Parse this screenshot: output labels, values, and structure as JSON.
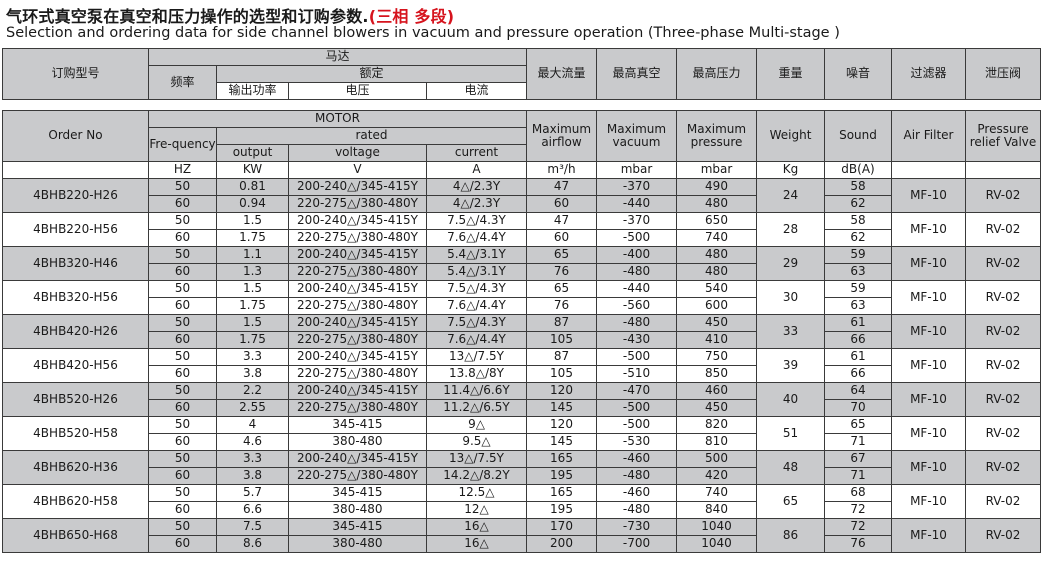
{
  "title": {
    "cn_main": "气环式真空泵在真空和压力操作的选型和订购参数.",
    "cn_highlight": "(三相 多段)",
    "en": "Selection and ordering data for side channel blowers in vacuum and pressure operation (Three-phase Multi-stage )"
  },
  "header_cn": {
    "order": "订购型号",
    "motor": "马达",
    "freq": "频率",
    "rated": "额定",
    "output": "输出功率",
    "voltage": "电压",
    "current": "电流",
    "airflow": "最大流量",
    "vacuum": "最高真空",
    "pressure": "最高压力",
    "weight": "重量",
    "sound": "噪音",
    "filter": "过滤器",
    "valve": "泄压阀"
  },
  "header_en": {
    "order": "Order No",
    "motor": "MOTOR",
    "freq": "Fre-quency",
    "rated": "rated",
    "output": "output",
    "voltage": "voltage",
    "current": "current",
    "airflow": "Maximum airflow",
    "vacuum": "Maximum vacuum",
    "pressure": "Maximum pressure",
    "weight": "Weight",
    "sound": "Sound",
    "filter": "Air Filter",
    "valve": "Pressure relief Valve"
  },
  "units": {
    "freq": "HZ",
    "output": "KW",
    "voltage": "V",
    "current": "A",
    "airflow": "m³/h",
    "vacuum": "mbar",
    "pressure": "mbar",
    "weight": "Kg",
    "sound": "dB(A)"
  },
  "rows": [
    {
      "model": "4BHB220-H26",
      "weight": "24",
      "filter": "MF-10",
      "valve": "RV-02",
      "sub": [
        {
          "freq": "50",
          "output": "0.81",
          "voltage": "200-240△/345-415Y",
          "current": "4△/2.3Y",
          "airflow": "47",
          "vacuum": "-370",
          "pressure": "490",
          "sound": "58"
        },
        {
          "freq": "60",
          "output": "0.94",
          "voltage": "220-275△/380-480Y",
          "current": "4△/2.3Y",
          "airflow": "60",
          "vacuum": "-440",
          "pressure": "480",
          "sound": "62"
        }
      ]
    },
    {
      "model": "4BHB220-H56",
      "weight": "28",
      "filter": "MF-10",
      "valve": "RV-02",
      "sub": [
        {
          "freq": "50",
          "output": "1.5",
          "voltage": "200-240△/345-415Y",
          "current": "7.5△/4.3Y",
          "airflow": "47",
          "vacuum": "-370",
          "pressure": "650",
          "sound": "58"
        },
        {
          "freq": "60",
          "output": "1.75",
          "voltage": "220-275△/380-480Y",
          "current": "7.6△/4.4Y",
          "airflow": "60",
          "vacuum": "-500",
          "pressure": "740",
          "sound": "62"
        }
      ]
    },
    {
      "model": "4BHB320-H46",
      "weight": "29",
      "filter": "MF-10",
      "valve": "RV-02",
      "sub": [
        {
          "freq": "50",
          "output": "1.1",
          "voltage": "200-240△/345-415Y",
          "current": "5.4△/3.1Y",
          "airflow": "65",
          "vacuum": "-400",
          "pressure": "480",
          "sound": "59"
        },
        {
          "freq": "60",
          "output": "1.3",
          "voltage": "220-275△/380-480Y",
          "current": "5.4△/3.1Y",
          "airflow": "76",
          "vacuum": "-480",
          "pressure": "480",
          "sound": "63"
        }
      ]
    },
    {
      "model": "4BHB320-H56",
      "weight": "30",
      "filter": "MF-10",
      "valve": "RV-02",
      "sub": [
        {
          "freq": "50",
          "output": "1.5",
          "voltage": "200-240△/345-415Y",
          "current": "7.5△/4.3Y",
          "airflow": "65",
          "vacuum": "-440",
          "pressure": "540",
          "sound": "59"
        },
        {
          "freq": "60",
          "output": "1.75",
          "voltage": "220-275△/380-480Y",
          "current": "7.6△/4.4Y",
          "airflow": "76",
          "vacuum": "-560",
          "pressure": "600",
          "sound": "63"
        }
      ]
    },
    {
      "model": "4BHB420-H26",
      "weight": "33",
      "filter": "MF-10",
      "valve": "RV-02",
      "sub": [
        {
          "freq": "50",
          "output": "1.5",
          "voltage": "200-240△/345-415Y",
          "current": "7.5△/4.3Y",
          "airflow": "87",
          "vacuum": "-480",
          "pressure": "450",
          "sound": "61"
        },
        {
          "freq": "60",
          "output": "1.75",
          "voltage": "220-275△/380-480Y",
          "current": "7.6△/4.4Y",
          "airflow": "105",
          "vacuum": "-430",
          "pressure": "410",
          "sound": "66"
        }
      ]
    },
    {
      "model": "4BHB420-H56",
      "weight": "39",
      "filter": "MF-10",
      "valve": "RV-02",
      "sub": [
        {
          "freq": "50",
          "output": "3.3",
          "voltage": "200-240△/345-415Y",
          "current": "13△/7.5Y",
          "airflow": "87",
          "vacuum": "-500",
          "pressure": "750",
          "sound": "61"
        },
        {
          "freq": "60",
          "output": "3.8",
          "voltage": "220-275△/380-480Y",
          "current": "13.8△/8Y",
          "airflow": "105",
          "vacuum": "-510",
          "pressure": "850",
          "sound": "66"
        }
      ]
    },
    {
      "model": "4BHB520-H26",
      "weight": "40",
      "filter": "MF-10",
      "valve": "RV-02",
      "sub": [
        {
          "freq": "50",
          "output": "2.2",
          "voltage": "200-240△/345-415Y",
          "current": "11.4△/6.6Y",
          "airflow": "120",
          "vacuum": "-470",
          "pressure": "460",
          "sound": "64"
        },
        {
          "freq": "60",
          "output": "2.55",
          "voltage": "220-275△/380-480Y",
          "current": "11.2△/6.5Y",
          "airflow": "145",
          "vacuum": "-500",
          "pressure": "450",
          "sound": "70"
        }
      ]
    },
    {
      "model": "4BHB520-H58",
      "weight": "51",
      "filter": "MF-10",
      "valve": "RV-02",
      "sub": [
        {
          "freq": "50",
          "output": "4",
          "voltage": "345-415",
          "current": "9△",
          "airflow": "120",
          "vacuum": "-500",
          "pressure": "820",
          "sound": "65"
        },
        {
          "freq": "60",
          "output": "4.6",
          "voltage": "380-480",
          "current": "9.5△",
          "airflow": "145",
          "vacuum": "-530",
          "pressure": "810",
          "sound": "71"
        }
      ]
    },
    {
      "model": "4BHB620-H36",
      "weight": "48",
      "filter": "MF-10",
      "valve": "RV-02",
      "sub": [
        {
          "freq": "50",
          "output": "3.3",
          "voltage": "200-240△/345-415Y",
          "current": "13△/7.5Y",
          "airflow": "165",
          "vacuum": "-460",
          "pressure": "500",
          "sound": "67"
        },
        {
          "freq": "60",
          "output": "3.8",
          "voltage": "220-275△/380-480Y",
          "current": "14.2△/8.2Y",
          "airflow": "195",
          "vacuum": "-480",
          "pressure": "420",
          "sound": "71"
        }
      ]
    },
    {
      "model": "4BHB620-H58",
      "weight": "65",
      "filter": "MF-10",
      "valve": "RV-02",
      "sub": [
        {
          "freq": "50",
          "output": "5.7",
          "voltage": "345-415",
          "current": "12.5△",
          "airflow": "165",
          "vacuum": "-460",
          "pressure": "740",
          "sound": "68"
        },
        {
          "freq": "60",
          "output": "6.6",
          "voltage": "380-480",
          "current": "12△",
          "airflow": "195",
          "vacuum": "-480",
          "pressure": "840",
          "sound": "72"
        }
      ]
    },
    {
      "model": "4BHB650-H68",
      "weight": "86",
      "filter": "MF-10",
      "valve": "RV-02",
      "sub": [
        {
          "freq": "50",
          "output": "7.5",
          "voltage": "345-415",
          "current": "16△",
          "airflow": "170",
          "vacuum": "-730",
          "pressure": "1040",
          "sound": "72"
        },
        {
          "freq": "60",
          "output": "8.6",
          "voltage": "380-480",
          "current": "16△",
          "airflow": "200",
          "vacuum": "-700",
          "pressure": "1040",
          "sound": "76"
        }
      ]
    }
  ]
}
